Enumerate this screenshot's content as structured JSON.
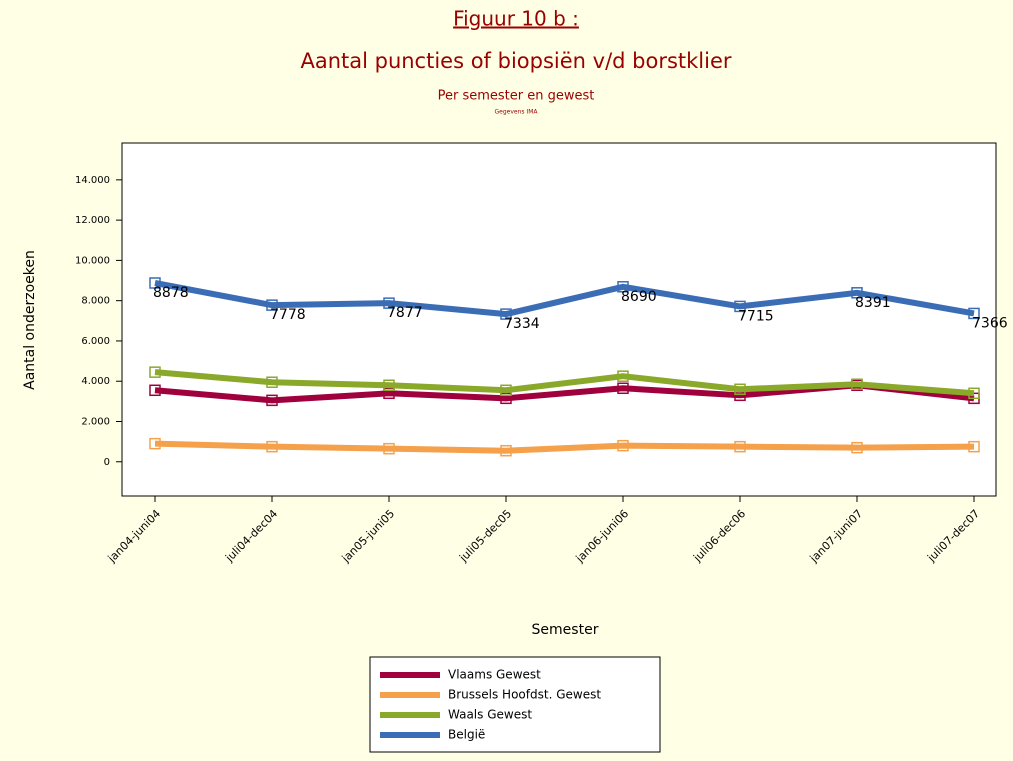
{
  "chart_data": {
    "type": "line",
    "title": "Figuur 10 b :",
    "subtitle": "Aantal puncties of biopsiën v/d borstklier",
    "subtitle2": "Per semester en gewest",
    "source": "Gegevens IMA",
    "x_label": "Semester",
    "y_label": "Aantal onderzoeken",
    "categories": [
      "jan04-juni04",
      "juli04-dec04",
      "jan05-juni05",
      "juli05-dec05",
      "jan06-juni06",
      "juli06-dec06",
      "jan07-juni07",
      "juli07-dec07"
    ],
    "series": [
      {
        "name": "Vlaams Gewest",
        "color": "#a0003c",
        "values": [
          3550,
          3050,
          3400,
          3150,
          3650,
          3300,
          3800,
          3150
        ]
      },
      {
        "name": "Brussels Hoofdst. Gewest",
        "color": "#f5a04a",
        "values": [
          900,
          750,
          650,
          550,
          800,
          750,
          700,
          750
        ]
      },
      {
        "name": "Waals Gewest",
        "color": "#8aa82a",
        "values": [
          4450,
          3950,
          3800,
          3550,
          4250,
          3600,
          3850,
          3400
        ]
      },
      {
        "name": "België",
        "color": "#3a6db5",
        "values": [
          8878,
          7778,
          7877,
          7334,
          8690,
          7715,
          8391,
          7366
        ],
        "show_labels": true
      }
    ],
    "ylim": [
      -1700,
      15830
    ],
    "yticks": [
      0,
      {
        "value": 2000,
        "label": "2.000"
      },
      {
        "value": 4000,
        "label": "4.000"
      },
      {
        "value": 6000,
        "label": "6.000"
      },
      {
        "value": 8000,
        "label": "8.000"
      },
      {
        "value": 10000,
        "label": "10.000"
      },
      {
        "value": 12000,
        "label": "12.000"
      },
      {
        "value": 14000,
        "label": "14.000"
      }
    ],
    "legend": "bottom"
  }
}
